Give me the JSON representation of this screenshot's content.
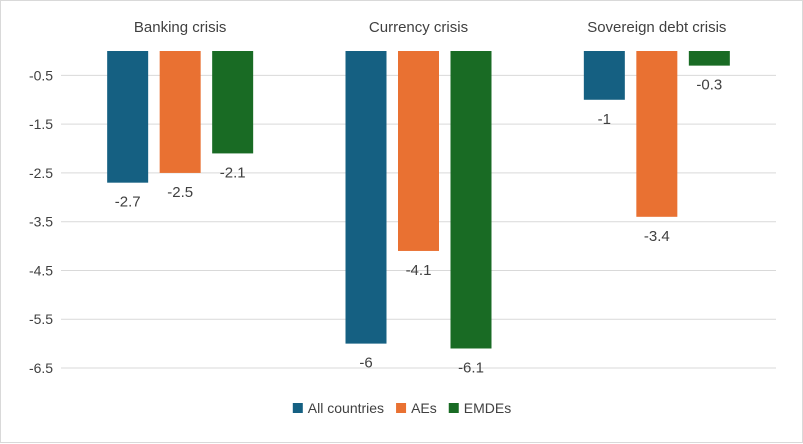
{
  "chart_data": {
    "type": "bar",
    "categories": [
      "Banking crisis",
      "Currency crisis",
      "Sovereign debt crisis"
    ],
    "series": [
      {
        "name": "All countries",
        "color": "#156082",
        "values": [
          -2.7,
          -6,
          -1
        ]
      },
      {
        "name": "AEs",
        "color": "#e97132",
        "values": [
          -2.5,
          -4.1,
          -3.4
        ]
      },
      {
        "name": "EMDEs",
        "color": "#196b24",
        "values": [
          -2.1,
          -6.1,
          -0.3
        ]
      }
    ],
    "yticks": [
      "-0.5",
      "-1.5",
      "-2.5",
      "-3.5",
      "-4.5",
      "-5.5",
      "-6.5"
    ],
    "ylim": [
      -6.5,
      0
    ],
    "grid": true,
    "category_labels_position": "top",
    "legend_position": "bottom",
    "title": "",
    "xlabel": "",
    "ylabel": ""
  }
}
